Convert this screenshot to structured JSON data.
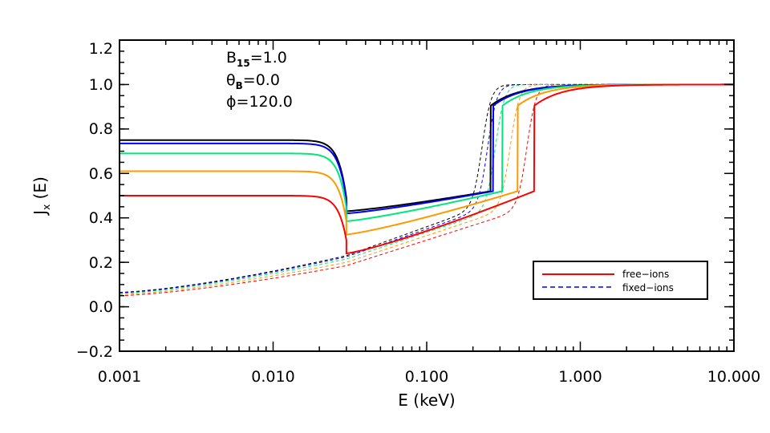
{
  "chart_data": {
    "type": "line",
    "xscale": "log",
    "xlim": [
      0.001,
      10.0
    ],
    "ylim": [
      -0.2,
      1.2
    ],
    "xlabel": "E (keV)",
    "ylabel": "J_x (E)",
    "ylabel_main": "J",
    "ylabel_sub": "x",
    "ylabel_rest": " (E)",
    "x_ticks": [
      0.001,
      0.01,
      0.1,
      1.0,
      10.0
    ],
    "x_tick_labels": [
      "0.001",
      "0.010",
      "0.100",
      "1.000",
      "10.000"
    ],
    "y_ticks": [
      -0.2,
      0.0,
      0.2,
      0.4,
      0.6,
      0.8,
      1.0,
      1.2
    ],
    "y_tick_labels": [
      "−0.2",
      "0.0",
      "0.2",
      "0.4",
      "0.6",
      "0.8",
      "1.0",
      "1.2"
    ],
    "annotations": [
      {
        "main": "B",
        "sub": "15",
        "rest": "=1.0"
      },
      {
        "main": "θ",
        "sub": "B",
        "rest": "=0.0"
      },
      {
        "main": "ϕ",
        "sub": "",
        "rest": "=120.0"
      }
    ],
    "legend": {
      "position": "bottom-right",
      "entries": [
        {
          "label": "free−ions",
          "style": "solid",
          "color": "#ff0000"
        },
        {
          "label": "fixed−ions",
          "style": "dashed",
          "color": "#0000ff"
        }
      ]
    },
    "series": [
      {
        "name": "black",
        "color": "#000000",
        "solid": {
          "plateau": 0.75,
          "min_at_jump": 0.43,
          "value_at_edge": 0.52,
          "edge_keV": 0.26,
          "edge_width": 0.25
        },
        "dashed": {
          "start": 0.065,
          "at_0.03": 0.23,
          "at_0.1": 0.36,
          "edge_keV": 0.23
        }
      },
      {
        "name": "blue",
        "color": "#0000ff",
        "solid": {
          "plateau": 0.735,
          "min_at_jump": 0.42,
          "value_at_edge": 0.52,
          "edge_keV": 0.27,
          "edge_width": 0.25
        },
        "dashed": {
          "start": 0.063,
          "at_0.03": 0.225,
          "at_0.1": 0.35,
          "edge_keV": 0.25
        }
      },
      {
        "name": "green",
        "color": "#00e87a",
        "solid": {
          "plateau": 0.69,
          "min_at_jump": 0.385,
          "value_at_edge": 0.52,
          "edge_keV": 0.31,
          "edge_width": 0.3
        },
        "dashed": {
          "start": 0.06,
          "at_0.03": 0.215,
          "at_0.1": 0.335,
          "edge_keV": 0.28
        }
      },
      {
        "name": "orange",
        "color": "#ff9900",
        "solid": {
          "plateau": 0.61,
          "min_at_jump": 0.325,
          "value_at_edge": 0.52,
          "edge_keV": 0.39,
          "edge_width": 0.35
        },
        "dashed": {
          "start": 0.055,
          "at_0.03": 0.2,
          "at_0.1": 0.32,
          "edge_keV": 0.35
        }
      },
      {
        "name": "red",
        "color": "#ff0000",
        "solid": {
          "plateau": 0.5,
          "min_at_jump": 0.24,
          "value_at_edge": 0.52,
          "edge_keV": 0.5,
          "edge_width": 0.4
        },
        "dashed": {
          "start": 0.05,
          "at_0.03": 0.185,
          "at_0.1": 0.3,
          "edge_keV": 0.45
        }
      }
    ],
    "jump_keV": 0.03
  }
}
